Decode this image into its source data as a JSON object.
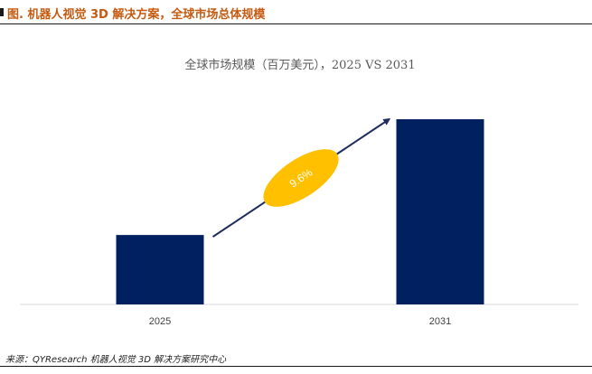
{
  "figure": {
    "title": "图. 机器人视觉 3D 解决方案，全球市场总体规模",
    "source": "来源：QYResearch 机器人视觉 3D 解决方案研究中心"
  },
  "colors": {
    "title": "#c55a11",
    "bar": "#002060",
    "ellipse": "#ffc000",
    "arrow": "#1f2d5c",
    "axis_text": "#404040"
  },
  "chart_data": {
    "type": "bar",
    "title": "全球市场规模（百万美元），2025 VS 2031",
    "categories": [
      "2025",
      "2031"
    ],
    "values": [
      37.5,
      100
    ],
    "ylim": [
      0,
      100
    ],
    "grid": false,
    "legend": "none",
    "annotation": {
      "text": "9.6%",
      "from": "2025",
      "to": "2031"
    }
  }
}
